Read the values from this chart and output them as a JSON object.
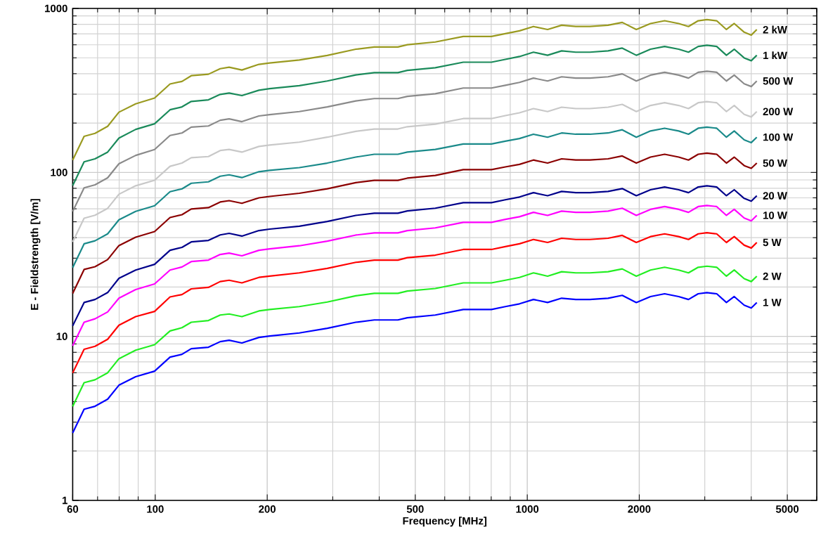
{
  "chart_data": {
    "type": "line",
    "xlabel": "Frequency [MHz]",
    "ylabel": "E - Fieldstrength [V/m]",
    "log": "xy",
    "grid": true,
    "xlim": [
      60,
      6000
    ],
    "xticks": [
      60,
      100,
      200,
      500,
      1000,
      2000,
      5000
    ],
    "ylim": [
      1,
      1000
    ],
    "yticks": [
      1,
      10,
      100,
      1000
    ],
    "x": [
      60,
      64.4,
      68.9,
      74.5,
      79.9,
      88.6,
      99.6,
      109.6,
      118,
      125,
      139,
      149.5,
      158,
      171,
      190,
      203,
      244,
      290,
      346,
      388,
      449,
      476,
      566,
      673,
      801,
      873,
      953,
      1039,
      1134,
      1237,
      1350,
      1473,
      1649,
      1800,
      1964,
      2144,
      2340,
      2553,
      2712,
      2880,
      3040,
      3230,
      3430,
      3600,
      3830,
      4000,
      4140
    ],
    "series": [
      {
        "name": "2 kW",
        "color": "#9a9a20",
        "values": [
          119,
          166,
          173,
          191,
          233,
          262,
          284,
          346,
          359,
          389,
          397,
          429,
          438,
          421,
          456,
          465,
          485,
          517,
          564,
          582,
          582,
          601,
          624,
          675,
          675,
          702,
          730,
          776,
          744,
          790,
          776,
          776,
          790,
          822,
          744,
          809,
          841,
          809,
          776,
          841,
          855,
          841,
          744,
          809,
          716,
          688,
          744
        ]
      },
      {
        "name": "1 kW",
        "color": "#1a8a5a",
        "values": [
          83.1,
          116,
          121,
          133,
          162,
          183,
          198,
          241,
          251,
          271,
          277,
          299,
          305,
          294,
          317,
          324,
          338,
          361,
          393,
          406,
          406,
          419,
          435,
          470,
          470,
          489,
          509,
          541,
          518,
          551,
          541,
          541,
          551,
          573,
          518,
          564,
          586,
          564,
          541,
          586,
          596,
          586,
          518,
          564,
          499,
          480,
          518
        ]
      },
      {
        "name": "500 W",
        "color": "#8a8a8a",
        "values": [
          57.8,
          80.6,
          84.0,
          92.7,
          113,
          127,
          138,
          168,
          174,
          189,
          192,
          208,
          212,
          204,
          221,
          225,
          235,
          251,
          273,
          282,
          282,
          291,
          302,
          327,
          327,
          340,
          354,
          376,
          361,
          383,
          376,
          376,
          383,
          399,
          361,
          392,
          408,
          392,
          376,
          408,
          414,
          408,
          361,
          392,
          347,
          334,
          361
        ]
      },
      {
        "name": "200 W",
        "color": "#c8c8c8",
        "values": [
          37.7,
          52.6,
          54.8,
          60.4,
          73.6,
          82.9,
          89.6,
          109,
          114,
          123,
          125,
          136,
          138,
          133,
          144,
          147,
          153,
          164,
          178,
          184,
          184,
          190,
          197,
          213,
          213,
          222,
          231,
          245,
          235,
          250,
          245,
          245,
          250,
          260,
          235,
          256,
          266,
          256,
          245,
          266,
          270,
          266,
          235,
          256,
          226,
          218,
          235
        ]
      },
      {
        "name": "100 W",
        "color": "#1a8a8a",
        "values": [
          26.3,
          36.7,
          38.3,
          42.2,
          51.4,
          57.9,
          62.6,
          76.3,
          79.4,
          85.9,
          87.6,
          94.8,
          96.7,
          93.0,
          101,
          103,
          107,
          114,
          124,
          129,
          129,
          133,
          138,
          149,
          149,
          155,
          161,
          171,
          164,
          174,
          171,
          171,
          174,
          182,
          164,
          179,
          186,
          179,
          171,
          186,
          189,
          186,
          164,
          179,
          158,
          152,
          164
        ]
      },
      {
        "name": "50 W",
        "color": "#8b0000",
        "values": [
          18.3,
          25.6,
          26.6,
          29.4,
          35.8,
          40.3,
          43.6,
          53.1,
          55.2,
          59.8,
          61.0,
          66.0,
          67.3,
          64.8,
          70.0,
          71.4,
          74.6,
          79.5,
          86.6,
          89.5,
          89.5,
          92.3,
          95.9,
          104,
          104,
          108,
          112,
          119,
          114,
          121,
          119,
          119,
          121,
          126,
          114,
          124,
          129,
          124,
          119,
          129,
          131,
          129,
          114,
          124,
          110,
          106,
          114
        ]
      },
      {
        "name": "20 W",
        "color": "#00008b",
        "values": [
          11.6,
          16.1,
          16.8,
          18.5,
          22.6,
          25.4,
          27.5,
          33.5,
          34.9,
          37.7,
          38.5,
          41.6,
          42.5,
          40.9,
          44.2,
          45.1,
          47.0,
          50.2,
          54.7,
          56.4,
          56.4,
          58.2,
          60.5,
          65.4,
          65.4,
          68.1,
          70.8,
          75.3,
          72.1,
          76.6,
          75.3,
          75.3,
          76.6,
          79.7,
          72.1,
          78.4,
          81.5,
          78.4,
          75.3,
          81.5,
          82.9,
          81.5,
          72.1,
          78.4,
          69.4,
          66.8,
          72.1
        ]
      },
      {
        "name": "10 W",
        "color": "#ff00ff",
        "values": [
          8.77,
          12.2,
          12.8,
          14.1,
          17.1,
          19.3,
          20.9,
          25.4,
          26.5,
          28.6,
          29.2,
          31.6,
          32.2,
          31.0,
          33.5,
          34.2,
          35.7,
          38.1,
          41.5,
          42.8,
          42.8,
          44.2,
          45.9,
          49.6,
          49.6,
          51.7,
          53.7,
          57.1,
          54.7,
          58.1,
          57.1,
          57.1,
          58.1,
          60.5,
          54.7,
          59.5,
          61.9,
          59.5,
          57.1,
          61.9,
          62.9,
          61.9,
          54.7,
          59.5,
          52.7,
          50.7,
          54.7
        ]
      },
      {
        "name": "5 W",
        "color": "#ff0000",
        "values": [
          5.99,
          8.35,
          8.7,
          9.6,
          11.7,
          13.2,
          14.2,
          17.4,
          18.0,
          19.5,
          19.9,
          21.6,
          22.0,
          21.2,
          22.9,
          23.3,
          24.4,
          26.0,
          28.3,
          29.2,
          29.2,
          30.2,
          31.3,
          33.9,
          33.9,
          35.3,
          36.7,
          39.0,
          37.4,
          39.7,
          39.0,
          39.0,
          39.7,
          41.3,
          37.4,
          40.6,
          42.2,
          40.6,
          39.0,
          42.2,
          42.9,
          42.2,
          37.4,
          40.6,
          36.0,
          34.6,
          37.4
        ]
      },
      {
        "name": "2 W",
        "color": "#22ee22",
        "values": [
          3.74,
          5.22,
          5.44,
          6.0,
          7.31,
          8.24,
          8.9,
          10.8,
          11.3,
          12.2,
          12.5,
          13.5,
          13.7,
          13.2,
          14.3,
          14.6,
          15.2,
          16.2,
          17.7,
          18.3,
          18.3,
          18.9,
          19.6,
          21.2,
          21.2,
          22.0,
          22.9,
          24.4,
          23.3,
          24.8,
          24.4,
          24.4,
          24.8,
          25.8,
          23.3,
          25.4,
          26.4,
          25.4,
          24.4,
          26.4,
          26.8,
          26.4,
          23.3,
          25.4,
          22.5,
          21.6,
          23.3
        ]
      },
      {
        "name": "1 W",
        "color": "#0000ff",
        "values": [
          2.58,
          3.6,
          3.75,
          4.14,
          5.04,
          5.68,
          6.14,
          7.48,
          7.78,
          8.42,
          8.59,
          9.29,
          9.48,
          9.12,
          9.86,
          10.06,
          10.5,
          11.2,
          12.2,
          12.6,
          12.6,
          13.0,
          13.5,
          14.6,
          14.6,
          15.2,
          15.8,
          16.8,
          16.1,
          17.1,
          16.8,
          16.8,
          17.1,
          17.8,
          16.1,
          17.5,
          18.2,
          17.5,
          16.8,
          18.2,
          18.5,
          18.2,
          16.1,
          17.5,
          15.5,
          14.9,
          16.1
        ]
      }
    ]
  }
}
